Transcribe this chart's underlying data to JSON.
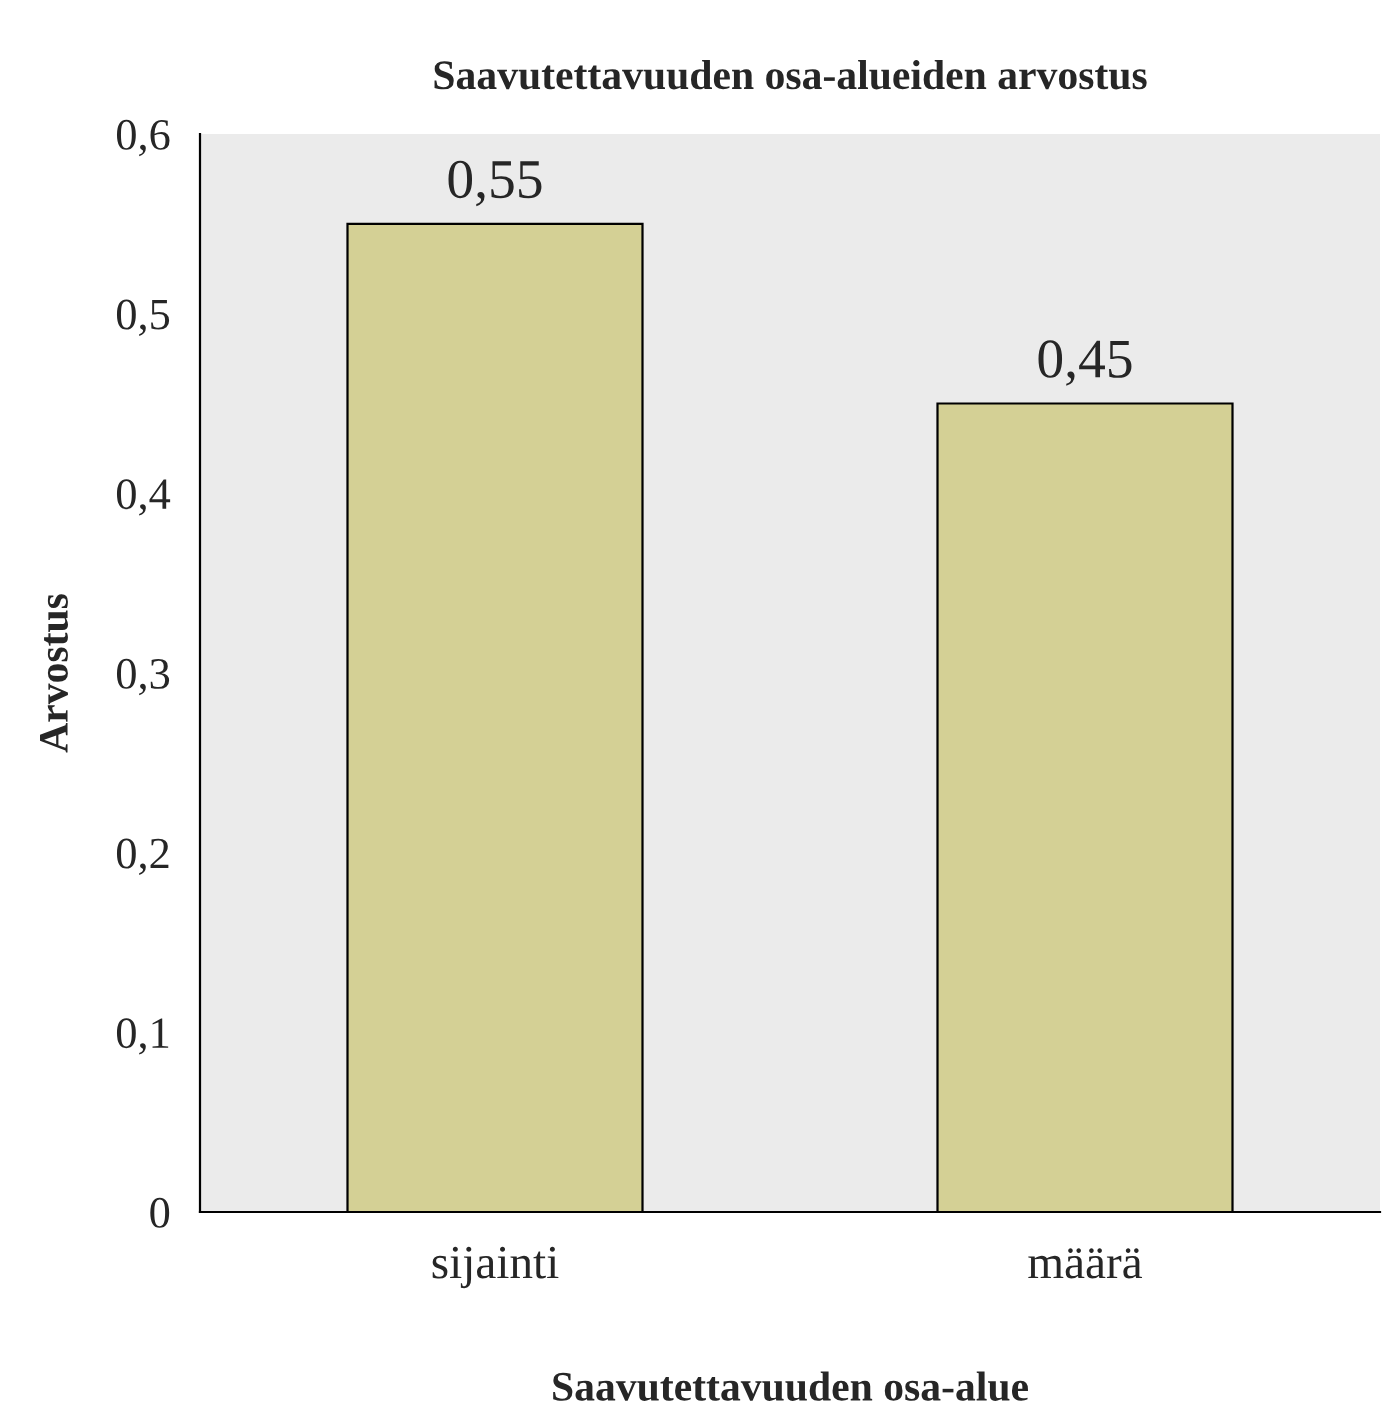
{
  "chart_data": {
    "type": "bar",
    "title": "Saavutettavuuden osa-alueiden arvostus",
    "xlabel": "Saavutettavuuden osa-alue",
    "ylabel": "Arvostus",
    "categories": [
      "sijainti",
      "määrä"
    ],
    "values": [
      0.55,
      0.45
    ],
    "value_labels": [
      "0,55",
      "0,45"
    ],
    "color": "#d4d095",
    "ylim": [
      0,
      0.6
    ],
    "yticks": [
      {
        "value": 0,
        "label": "0"
      },
      {
        "value": 0.1,
        "label": "0,1"
      },
      {
        "value": 0.2,
        "label": "0,2"
      },
      {
        "value": 0.3,
        "label": "0,3"
      },
      {
        "value": 0.4,
        "label": "0,4"
      },
      {
        "value": 0.5,
        "label": "0,5"
      },
      {
        "value": 0.6,
        "label": "0,6"
      }
    ],
    "grid": false,
    "legend": false
  }
}
